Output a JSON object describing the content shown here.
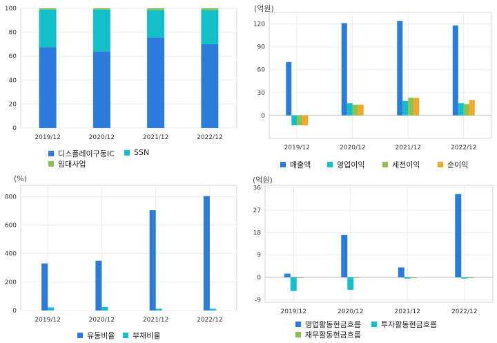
{
  "chart_data": [
    {
      "type": "bar",
      "stacked": true,
      "title": "",
      "categories": [
        "2019/12",
        "2020/12",
        "2021/12",
        "2022/12"
      ],
      "series": [
        {
          "name": "디스플레이구동IC",
          "color": "#2b7bdc",
          "values": [
            67.5,
            64,
            75.5,
            70
          ]
        },
        {
          "name": "SSN",
          "color": "#13bfc9",
          "values": [
            31.5,
            35,
            23,
            28.5
          ]
        },
        {
          "name": "임대사업",
          "color": "#8cc152",
          "values": [
            1,
            1,
            1.5,
            1.5
          ]
        }
      ],
      "ylim": [
        0,
        100
      ],
      "yticks": [
        0,
        20,
        40,
        60,
        80,
        100
      ],
      "unit": "",
      "grid": true,
      "legend_position": "bottom-left"
    },
    {
      "type": "bar",
      "title": "",
      "unit": "(억원)",
      "categories": [
        "2019/12",
        "2020/12",
        "2021/12",
        "2022/12"
      ],
      "series": [
        {
          "name": "매출액",
          "color": "#2b7bdc",
          "values": [
            70,
            121,
            124,
            118
          ]
        },
        {
          "name": "영업이익",
          "color": "#13bfc9",
          "values": [
            -13,
            16,
            19,
            16
          ]
        },
        {
          "name": "세전이익",
          "color": "#8cc152",
          "values": [
            -13,
            14,
            23,
            15
          ]
        },
        {
          "name": "순이익",
          "color": "#f5a623",
          "values": [
            -13,
            14,
            23,
            20
          ]
        }
      ],
      "ylim": [
        -30,
        135
      ],
      "yticks": [
        0,
        30,
        60,
        90,
        120
      ],
      "grid": true,
      "legend_position": "bottom"
    },
    {
      "type": "bar",
      "title": "",
      "unit": "(%)",
      "categories": [
        "2019/12",
        "2020/12",
        "2021/12",
        "2022/12"
      ],
      "series": [
        {
          "name": "유동비율",
          "color": "#2b7bdc",
          "values": [
            330,
            350,
            705,
            805
          ]
        },
        {
          "name": "부채비율",
          "color": "#13bfc9",
          "values": [
            22,
            25,
            12,
            12
          ]
        }
      ],
      "ylim": [
        0,
        880
      ],
      "yticks": [
        0,
        200,
        400,
        600,
        800
      ],
      "grid": true,
      "legend_position": "bottom"
    },
    {
      "type": "bar",
      "title": "",
      "unit": "(억원)",
      "categories": [
        "2019/12",
        "2020/12",
        "2021/12",
        "2022/12"
      ],
      "series": [
        {
          "name": "영업활동현금흐름",
          "color": "#2b7bdc",
          "values": [
            1.5,
            17,
            4,
            33.5
          ]
        },
        {
          "name": "투자활동현금흐름",
          "color": "#13bfc9",
          "values": [
            -5.5,
            -5,
            -0.5,
            -0.5
          ]
        },
        {
          "name": "재무활동현금흐름",
          "color": "#8cc152",
          "values": [
            0,
            0,
            -0.3,
            -0.3
          ]
        }
      ],
      "ylim": [
        -10,
        37
      ],
      "yticks": [
        -9,
        0,
        9,
        18,
        27,
        36
      ],
      "grid": true,
      "legend_position": "bottom"
    }
  ]
}
